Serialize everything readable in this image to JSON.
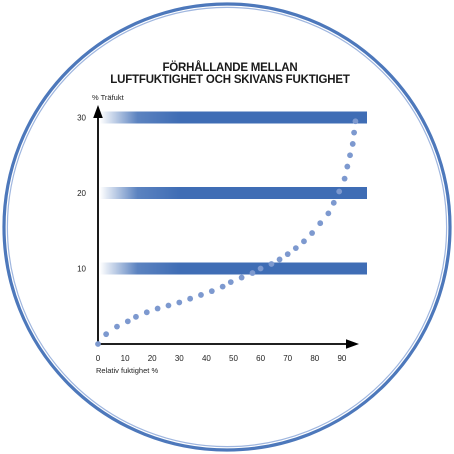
{
  "chart_data": {
    "type": "scatter",
    "title_lines": [
      "FÖRHÅLLANDE MELLAN",
      "LUFTFUKTIGHET OCH SKIVANS FUKTIGHET"
    ],
    "xlabel": "Relativ fuktighet %",
    "ylabel": "% Träfukt",
    "xlim": [
      0,
      97
    ],
    "ylim": [
      0,
      31
    ],
    "xticks": [
      0,
      10,
      20,
      30,
      40,
      50,
      60,
      70,
      80,
      90
    ],
    "yticks": [
      10,
      20,
      30
    ],
    "grid": false,
    "bands": [
      10,
      20,
      30
    ],
    "series": [
      {
        "values": [
          {
            "x": 0,
            "y": 0
          },
          {
            "x": 3,
            "y": 1.3
          },
          {
            "x": 7,
            "y": 2.3
          },
          {
            "x": 11,
            "y": 3.0
          },
          {
            "x": 14,
            "y": 3.6
          },
          {
            "x": 18,
            "y": 4.2
          },
          {
            "x": 22,
            "y": 4.7
          },
          {
            "x": 26,
            "y": 5.1
          },
          {
            "x": 30,
            "y": 5.5
          },
          {
            "x": 34,
            "y": 6.0
          },
          {
            "x": 38,
            "y": 6.5
          },
          {
            "x": 42,
            "y": 7.0
          },
          {
            "x": 46,
            "y": 7.6
          },
          {
            "x": 49,
            "y": 8.2
          },
          {
            "x": 53,
            "y": 8.8
          },
          {
            "x": 57,
            "y": 9.4
          },
          {
            "x": 60,
            "y": 10.0
          },
          {
            "x": 64,
            "y": 10.6
          },
          {
            "x": 67,
            "y": 11.2
          },
          {
            "x": 70,
            "y": 11.9
          },
          {
            "x": 73,
            "y": 12.7
          },
          {
            "x": 76,
            "y": 13.6
          },
          {
            "x": 79,
            "y": 14.7
          },
          {
            "x": 82,
            "y": 16.0
          },
          {
            "x": 85,
            "y": 17.3
          },
          {
            "x": 87,
            "y": 18.7
          },
          {
            "x": 89,
            "y": 20.2
          },
          {
            "x": 91,
            "y": 21.9
          },
          {
            "x": 92,
            "y": 23.5
          },
          {
            "x": 93,
            "y": 25.0
          },
          {
            "x": 94,
            "y": 26.5
          },
          {
            "x": 94.5,
            "y": 28.0
          },
          {
            "x": 95,
            "y": 29.5
          }
        ]
      }
    ],
    "colors": {
      "ring": "#4d78bb",
      "band": "#3f6db5",
      "dots": "#7d99cf",
      "axis": "#000000"
    }
  }
}
